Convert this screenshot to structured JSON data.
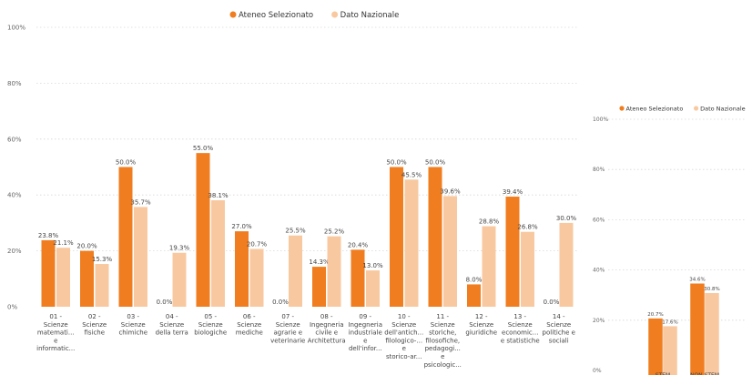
{
  "colors": {
    "ateneo": "#f07d1f",
    "nazionale": "#f8c9a0"
  },
  "chart_data": [
    {
      "type": "bar",
      "legend_position": "top-center",
      "grid": true,
      "ylim": [
        0,
        100
      ],
      "y_ticks": [
        "0%",
        "20%",
        "40%",
        "60%",
        "80%",
        "100%"
      ],
      "categories": [
        [
          "01 -",
          "Scienze",
          "matemati...",
          "e",
          "informatic..."
        ],
        [
          "02 -",
          "Scienze",
          "fisiche"
        ],
        [
          "03 -",
          "Scienze",
          "chimiche"
        ],
        [
          "04 -",
          "Scienze",
          "della terra"
        ],
        [
          "05 -",
          "Scienze",
          "biologiche"
        ],
        [
          "06 -",
          "Scienze",
          "mediche"
        ],
        [
          "07 -",
          "Scienze",
          "agrarie e",
          "veterinarie"
        ],
        [
          "08 -",
          "Ingegneria",
          "civile e",
          "Architettura"
        ],
        [
          "09 -",
          "Ingegneria",
          "industriale",
          "e",
          "dell'infor..."
        ],
        [
          "10 -",
          "Scienze",
          "dell'antich...",
          "filologico-...",
          "e",
          "storico-ar..."
        ],
        [
          "11 -",
          "Scienze",
          "storiche,",
          "filosofiche,",
          "pedagogi...",
          "e",
          "psicologic..."
        ],
        [
          "12 -",
          "Scienze",
          "giuridiche"
        ],
        [
          "13 -",
          "Scienze",
          "economic...",
          "e statistiche"
        ],
        [
          "14 -",
          "Scienze",
          "politiche e",
          "sociali"
        ]
      ],
      "series": [
        {
          "name": "Ateneo Selezionato",
          "values": [
            23.8,
            20.0,
            50.0,
            0.0,
            55.0,
            27.0,
            0.0,
            14.3,
            20.4,
            50.0,
            50.0,
            8.0,
            39.4,
            0.0
          ],
          "labels": [
            "23.8%",
            "20.0%",
            "50.0%",
            "0.0%",
            "55.0%",
            "27.0%",
            "0.0%",
            "14.3%",
            "20.4%",
            "50.0%",
            "50.0%",
            "8.0%",
            "39.4%",
            "0.0%"
          ]
        },
        {
          "name": "Dato Nazionale",
          "values": [
            21.1,
            15.3,
            35.7,
            19.3,
            38.1,
            20.7,
            25.5,
            25.2,
            13.0,
            45.5,
            39.6,
            28.8,
            26.8,
            30.0
          ],
          "labels": [
            "21.1%",
            "15.3%",
            "35.7%",
            "19.3%",
            "38.1%",
            "20.7%",
            "25.5%",
            "25.2%",
            "13.0%",
            "45.5%",
            "39.6%",
            "28.8%",
            "26.8%",
            "30.0%"
          ]
        }
      ]
    },
    {
      "type": "bar",
      "legend_position": "top-left",
      "grid": true,
      "ylim": [
        0,
        100
      ],
      "y_ticks": [
        "0%",
        "20%",
        "40%",
        "60%",
        "80%",
        "100%"
      ],
      "categories": [
        [
          "STEM"
        ],
        [
          "NON STEM"
        ]
      ],
      "series": [
        {
          "name": "Ateneo Selezionato",
          "values": [
            20.7,
            34.6
          ],
          "labels": [
            "20.7%",
            "34.6%"
          ]
        },
        {
          "name": "Dato Nazionale",
          "values": [
            17.6,
            30.8
          ],
          "labels": [
            "17.6%",
            "30.8%"
          ]
        }
      ]
    }
  ]
}
